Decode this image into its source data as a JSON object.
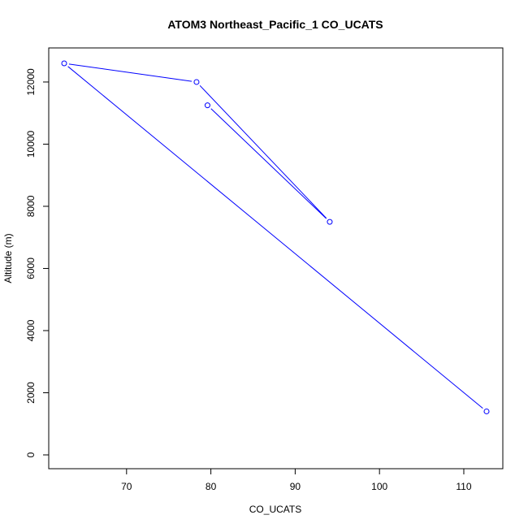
{
  "chart_data": {
    "type": "line",
    "title": "ATOM3 Northeast_Pacific_1 CO_UCATS",
    "xlabel": "CO_UCATS",
    "ylabel": "Altitude (m)",
    "xlim": [
      62.6,
      112.7
    ],
    "ylim": [
      0,
      12600
    ],
    "xticks": [
      70,
      80,
      90,
      100,
      110
    ],
    "yticks": [
      0,
      2000,
      4000,
      6000,
      8000,
      10000,
      12000
    ],
    "grid": false,
    "series": [
      {
        "color": "#0000ff",
        "marker": "open-circle",
        "points": [
          {
            "x": 79.6,
            "y": 11250
          },
          {
            "x": 94.1,
            "y": 7500
          },
          {
            "x": 78.3,
            "y": 12000
          },
          {
            "x": 62.6,
            "y": 12600
          },
          {
            "x": 112.7,
            "y": 1400
          }
        ]
      }
    ]
  }
}
